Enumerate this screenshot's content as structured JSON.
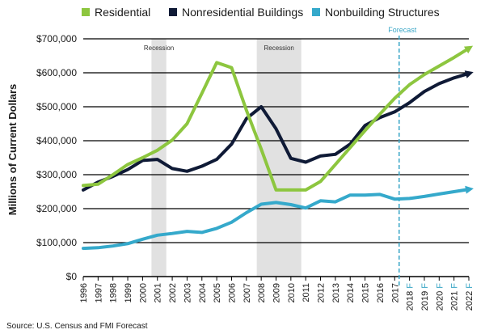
{
  "chart_data": {
    "type": "line",
    "ylabel": "Millions of Current Dollars",
    "ylim": [
      0,
      700000
    ],
    "yticks": [
      "$0",
      "$100,000",
      "$200,000",
      "$300,000",
      "$400,000",
      "$500,000",
      "$600,000",
      "$700,000"
    ],
    "categories": [
      "1996",
      "1997",
      "1998",
      "1999",
      "2000",
      "2001",
      "2002",
      "2003",
      "2004",
      "2005",
      "2006",
      "2007",
      "2008",
      "2009",
      "2010",
      "2011",
      "2012",
      "2013",
      "2014",
      "2015",
      "2016",
      "2017",
      "2018 F",
      "2019 F",
      "2020 F",
      "2021 F",
      "2022 F"
    ],
    "series": [
      {
        "name": "Residential",
        "color": "#8dc63f",
        "values": [
          268000,
          272000,
          300000,
          330000,
          350000,
          372000,
          402000,
          450000,
          540000,
          630000,
          615000,
          490000,
          375000,
          255000,
          255000,
          255000,
          280000,
          330000,
          380000,
          430000,
          478000,
          525000,
          565000,
          595000,
          620000,
          645000,
          672000
        ]
      },
      {
        "name": "Nonresidential Buildings",
        "color": "#0f1a36",
        "values": [
          255000,
          278000,
          295000,
          315000,
          342000,
          345000,
          318000,
          310000,
          325000,
          345000,
          390000,
          465000,
          500000,
          435000,
          348000,
          337000,
          355000,
          360000,
          390000,
          445000,
          468000,
          485000,
          512000,
          545000,
          568000,
          585000,
          598000
        ]
      },
      {
        "name": "Nonbuilding Structures",
        "color": "#35a9cb",
        "values": [
          83000,
          85000,
          90000,
          97000,
          110000,
          122000,
          127000,
          133000,
          130000,
          142000,
          160000,
          188000,
          213000,
          218000,
          212000,
          202000,
          223000,
          220000,
          240000,
          240000,
          242000,
          228000,
          230000,
          236000,
          243000,
          250000,
          257000
        ]
      }
    ],
    "recessions": [
      {
        "label": "Recession",
        "start": 2000.6,
        "end": 2001.6
      },
      {
        "label": "Recession",
        "start": 2007.7,
        "end": 2010.7
      }
    ],
    "forecast": {
      "label": "Forecast",
      "at": 2017.3
    },
    "grid": "horizontal",
    "legend_position": "top"
  },
  "source": "Source: U.S. Census and FMI Forecast"
}
